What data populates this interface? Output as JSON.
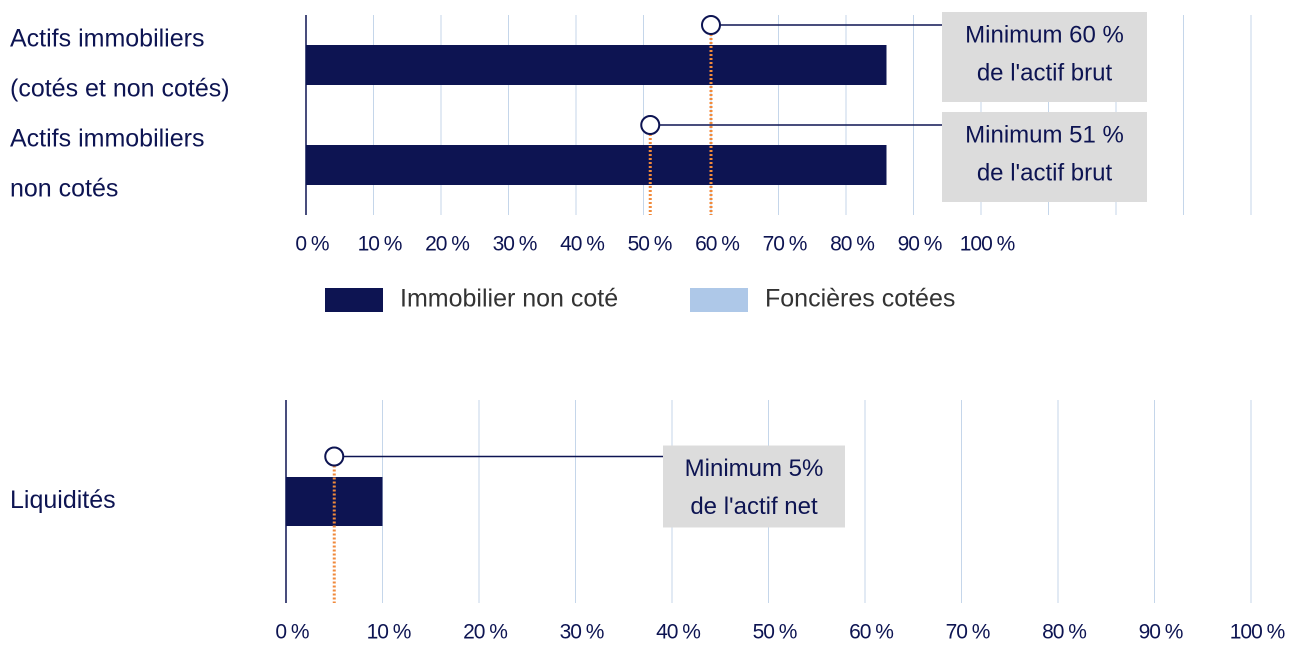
{
  "chart_data": [
    {
      "type": "barh",
      "categories": [
        [
          "Actifs immobiliers",
          "(cotés et non cotés)"
        ],
        [
          "Actifs immobiliers",
          "non cotés"
        ]
      ],
      "series": [
        {
          "name": "Immobilier non coté",
          "color": "#0d1452",
          "values": [
            86,
            86
          ]
        },
        {
          "name": "Foncières cotées",
          "color": "#aec8e8",
          "values": [
            0,
            0
          ]
        }
      ],
      "xlim": [
        0,
        140
      ],
      "xticks": [
        {
          "value": 0,
          "label": "0 %"
        },
        {
          "value": 10,
          "label": "10 %"
        },
        {
          "value": 20,
          "label": "20 %"
        },
        {
          "value": 30,
          "label": "30 %"
        },
        {
          "value": 40,
          "label": "40 %"
        },
        {
          "value": 50,
          "label": "50 %"
        },
        {
          "value": 60,
          "label": "60 %"
        },
        {
          "value": 70,
          "label": "70 %"
        },
        {
          "value": 80,
          "label": "80 %"
        },
        {
          "value": 90,
          "label": "90 %"
        },
        {
          "value": 100,
          "label": "100 %"
        }
      ],
      "annotations": [
        {
          "value": 60,
          "label": [
            "Minimum 60 %",
            "de l'actif brut"
          ]
        },
        {
          "value": 51,
          "label": [
            "Minimum 51 %",
            "de l'actif brut"
          ]
        }
      ],
      "grid": true,
      "legend": "bottom"
    },
    {
      "type": "barh",
      "categories": [
        [
          "Liquidités"
        ]
      ],
      "series": [
        {
          "name": "Liquidités",
          "color": "#0d1452",
          "values": [
            10
          ]
        }
      ],
      "xlim": [
        0,
        100
      ],
      "xticks": [
        {
          "value": 0,
          "label": "0 %"
        },
        {
          "value": 10,
          "label": "10 %"
        },
        {
          "value": 20,
          "label": "20 %"
        },
        {
          "value": 30,
          "label": "30 %"
        },
        {
          "value": 40,
          "label": "40 %"
        },
        {
          "value": 50,
          "label": "50 %"
        },
        {
          "value": 60,
          "label": "60 %"
        },
        {
          "value": 70,
          "label": "70 %"
        },
        {
          "value": 80,
          "label": "80 %"
        },
        {
          "value": 90,
          "label": "90 %"
        },
        {
          "value": 100,
          "label": "100 %"
        }
      ],
      "annotations": [
        {
          "value": 5,
          "label": [
            "Minimum 5%",
            "de l'actif net"
          ]
        }
      ],
      "grid": true
    }
  ]
}
